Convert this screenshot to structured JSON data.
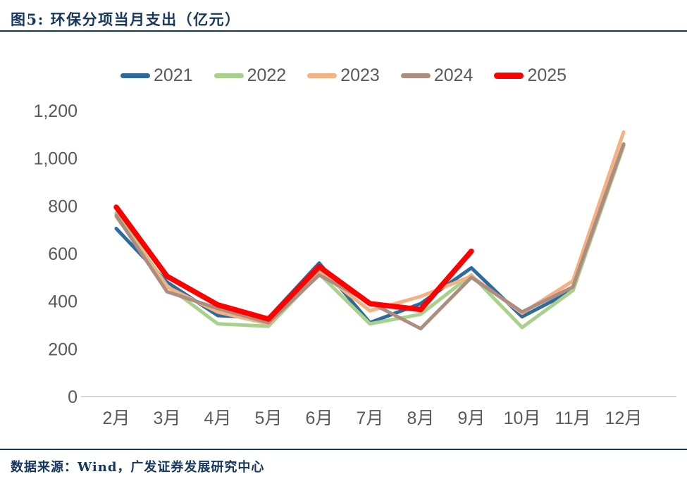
{
  "title": "图5:  环保分项当月支出（亿元）",
  "footer": {
    "source_text": "数据来源：Wind，广发证券发展研究中心"
  },
  "colors": {
    "title_navy": "#17365D",
    "axis_text_gray": "#595959",
    "axis_line_gray": "#C9C9C9"
  },
  "chart_data": {
    "type": "line",
    "title": "环保分项当月支出（亿元）",
    "xlabel": "",
    "ylabel": "",
    "categories": [
      "2月",
      "3月",
      "4月",
      "5月",
      "6月",
      "7月",
      "8月",
      "9月",
      "10月",
      "11月",
      "12月"
    ],
    "yticks": [
      "0",
      "200",
      "400",
      "600",
      "800",
      "1,000",
      "1,200"
    ],
    "ytick_values": [
      0,
      200,
      400,
      600,
      800,
      1000,
      1200
    ],
    "ylim": [
      0,
      1200
    ],
    "grid": false,
    "legend_position": "top",
    "series": [
      {
        "name": "2021",
        "color": "#2E6A9E",
        "emphasis": false,
        "values": [
          705,
          480,
          340,
          330,
          560,
          310,
          390,
          540,
          335,
          445,
          1055
        ]
      },
      {
        "name": "2022",
        "color": "#A9D18E",
        "emphasis": false,
        "values": [
          770,
          465,
          305,
          295,
          515,
          305,
          345,
          510,
          290,
          445,
          1050
        ]
      },
      {
        "name": "2023",
        "color": "#F4B183",
        "emphasis": false,
        "values": [
          755,
          460,
          355,
          305,
          525,
          360,
          420,
          505,
          350,
          485,
          1110
        ]
      },
      {
        "name": "2024",
        "color": "#AD8D80",
        "emphasis": false,
        "values": [
          760,
          440,
          370,
          310,
          510,
          395,
          285,
          500,
          355,
          460,
          1060
        ]
      },
      {
        "name": "2025",
        "color": "#FF0000",
        "emphasis": true,
        "values": [
          795,
          505,
          385,
          325,
          545,
          390,
          365,
          610,
          null,
          null,
          null
        ]
      }
    ]
  }
}
